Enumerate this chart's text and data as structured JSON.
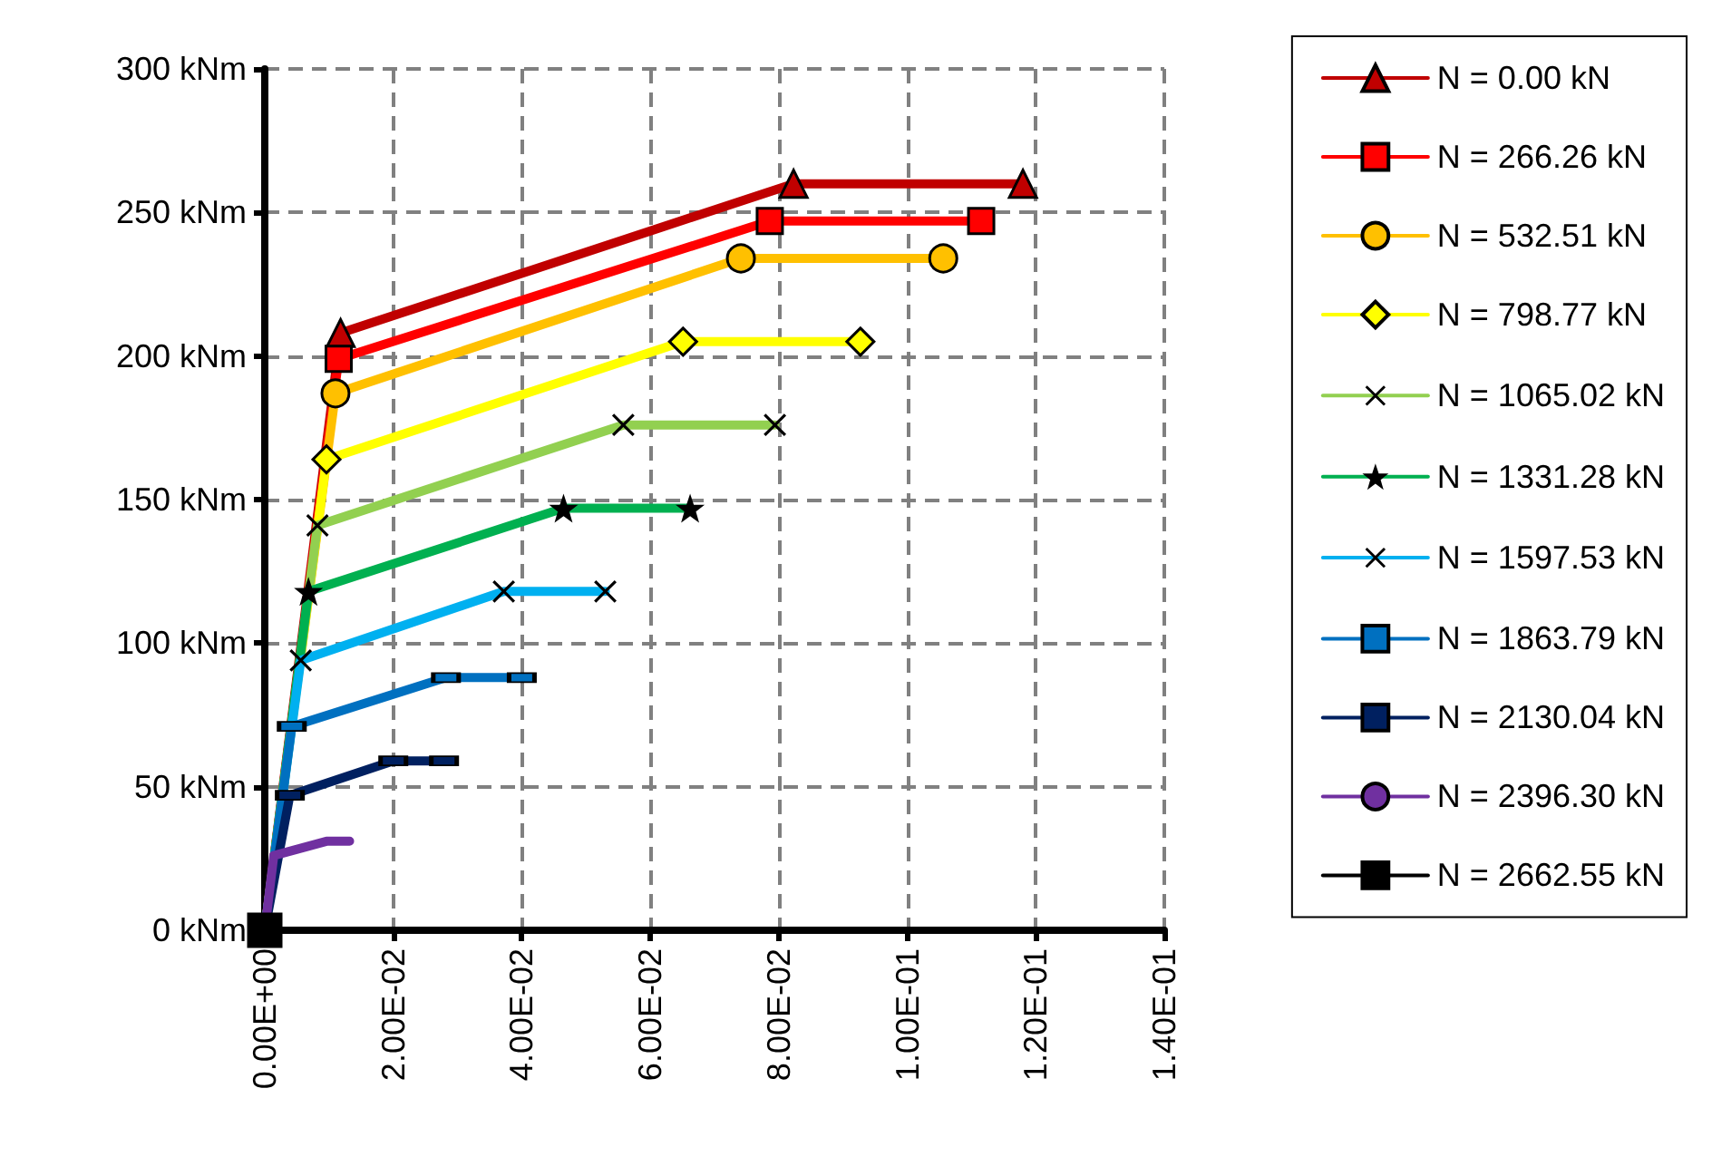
{
  "chart_data": {
    "type": "line",
    "legend": "right",
    "grid": true,
    "xlim": [
      0,
      0.14
    ],
    "xticks": [
      {
        "value": 0,
        "label": "0.00E+00"
      },
      {
        "value": 0.02,
        "label": "2.00E-02"
      },
      {
        "value": 0.04,
        "label": "4.00E-02"
      },
      {
        "value": 0.06,
        "label": "6.00E-02"
      },
      {
        "value": 0.08,
        "label": "8.00E-02"
      },
      {
        "value": 0.1,
        "label": "1.00E-01"
      },
      {
        "value": 0.12,
        "label": "1.20E-01"
      },
      {
        "value": 0.14,
        "label": "1.40E-01"
      }
    ],
    "ylim": [
      0,
      300
    ],
    "yticks": [
      {
        "value": 0,
        "label": "0 kNm"
      },
      {
        "value": 50,
        "label": "50 kNm"
      },
      {
        "value": 100,
        "label": "100 kNm"
      },
      {
        "value": 150,
        "label": "150 kNm"
      },
      {
        "value": 200,
        "label": "200 kNm"
      },
      {
        "value": 250,
        "label": "250 kNm"
      },
      {
        "value": 300,
        "label": "300 kNm"
      }
    ],
    "series": [
      {
        "name": "N = 0.00 kN",
        "color": "#c00000",
        "marker": "triangle",
        "x": [
          0,
          0.0118,
          0.0823,
          0.118
        ],
        "values": [
          0,
          208,
          260,
          260
        ]
      },
      {
        "name": "N = 266.26 kN",
        "color": "#ff0000",
        "marker": "square",
        "x": [
          0,
          0.0115,
          0.0786,
          0.1115
        ],
        "values": [
          0,
          199,
          247,
          247
        ]
      },
      {
        "name": "N = 532.51 kN",
        "color": "#ffc000",
        "marker": "circle",
        "x": [
          0,
          0.011,
          0.0741,
          0.1056
        ],
        "values": [
          0,
          187,
          234,
          234
        ]
      },
      {
        "name": "N = 798.77 kN",
        "color": "#ffff00",
        "marker": "diamond",
        "x": [
          0,
          0.0096,
          0.0651,
          0.0927
        ],
        "values": [
          0,
          164,
          205,
          205
        ]
      },
      {
        "name": "N = 1065.02 kN",
        "color": "#92d050",
        "marker": "cross",
        "x": [
          0,
          0.0082,
          0.0558,
          0.0794
        ],
        "values": [
          0,
          141,
          176,
          176
        ]
      },
      {
        "name": "N = 1331.28 kN",
        "color": "#00b050",
        "marker": "star",
        "x": [
          0,
          0.0068,
          0.0465,
          0.0662
        ],
        "values": [
          0,
          118,
          147,
          147
        ]
      },
      {
        "name": "N = 1597.53 kN",
        "color": "#00b0f0",
        "marker": "cross",
        "x": [
          0,
          0.0056,
          0.0372,
          0.053
        ],
        "values": [
          0,
          94,
          118,
          118
        ]
      },
      {
        "name": "N = 1863.79 kN",
        "color": "#0070c0",
        "marker": "square",
        "x": [
          0,
          0.0042,
          0.0282,
          0.04
        ],
        "values": [
          0,
          71,
          88,
          88
        ]
      },
      {
        "name": "N = 2130.04 kN",
        "color": "#002060",
        "marker": "square",
        "x": [
          0,
          0.0039,
          0.02,
          0.0279
        ],
        "values": [
          0,
          47,
          59,
          59
        ]
      },
      {
        "name": "N = 2396.30 kN",
        "color": "#7030a0",
        "marker": "none",
        "x": [
          0,
          0.0014,
          0.0096,
          0.0132
        ],
        "values": [
          0,
          26,
          31,
          31
        ]
      },
      {
        "name": "N = 2662.55 kN",
        "color": "#000000",
        "marker": "square",
        "x": [
          0
        ],
        "values": [
          0
        ]
      }
    ]
  }
}
